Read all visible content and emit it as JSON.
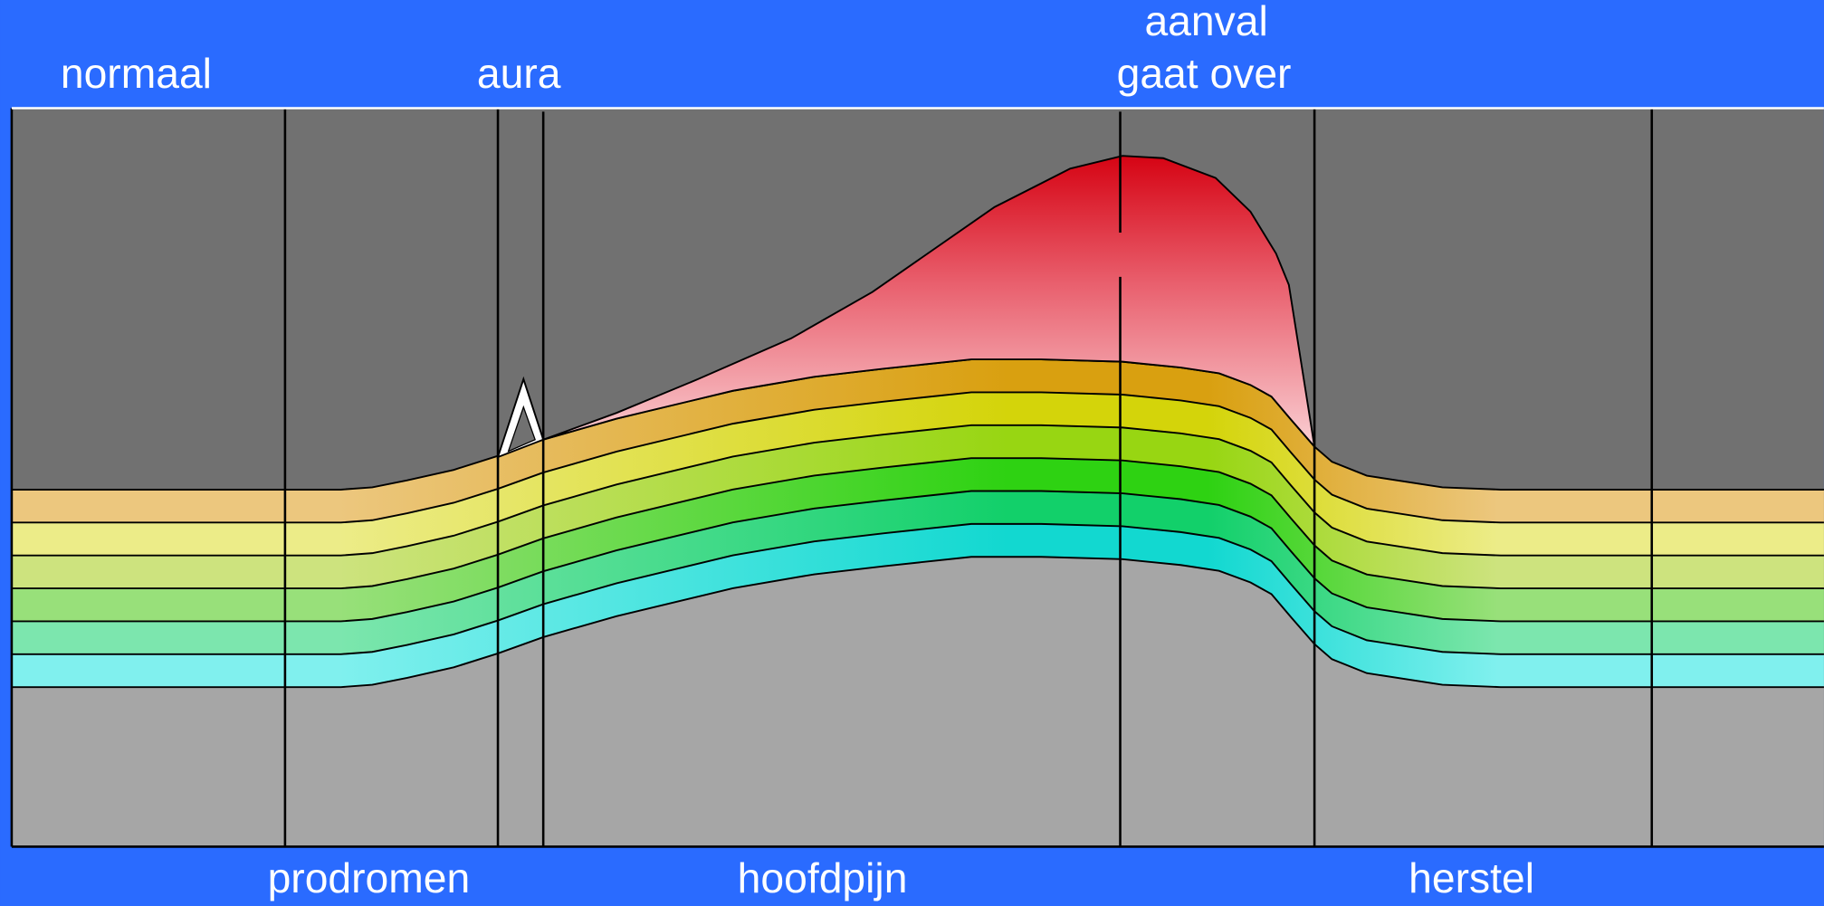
{
  "top_labels": [
    "normaal",
    "aura"
  ],
  "attack": {
    "line1": "aanval",
    "line2": "gaat over"
  },
  "bottom_labels": [
    "prodromen",
    "hoofdpijn",
    "herstel"
  ]
}
